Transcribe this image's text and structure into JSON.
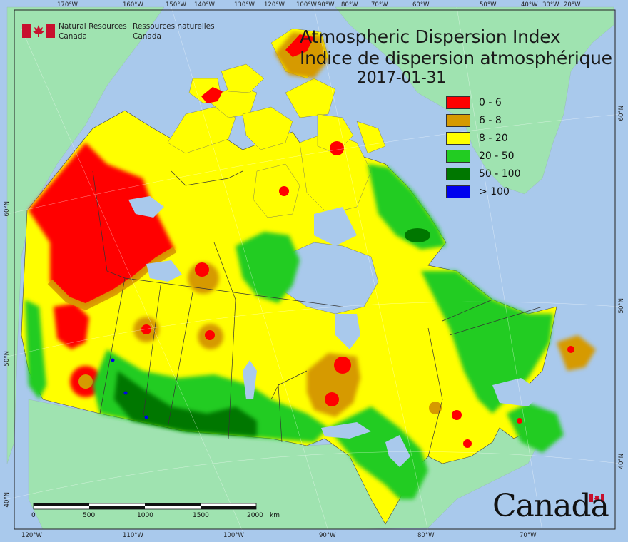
{
  "title": {
    "line_en": "Atmospheric Dispersion Index",
    "line_fr": "Indice de dispersion atmosphérique",
    "date": "2017-01-31"
  },
  "agency": {
    "en_line1": "Natural Resources",
    "en_line2": "Canada",
    "fr_line1": "Ressources naturelles",
    "fr_line2": "Canada"
  },
  "wordmark": "Canada",
  "legend": [
    {
      "label": "0 - 6",
      "color": "#ff0000"
    },
    {
      "label": "6 - 8",
      "color": "#d69a00"
    },
    {
      "label": "8 - 20",
      "color": "#ffff00"
    },
    {
      "label": "20 - 50",
      "color": "#22cc22"
    },
    {
      "label": "50 - 100",
      "color": "#007700"
    },
    {
      "label": "> 100",
      "color": "#0000ee"
    }
  ],
  "colors": {
    "ocean": "#a9c9ec",
    "foreign_land": "#9fe3b0",
    "lakes": "#a9c9ec",
    "boundaries": "#333333"
  },
  "top_ticks": [
    "170°W",
    "160°W",
    "150°W",
    "140°W",
    "130°W",
    "120°W",
    "100°W",
    "90°W",
    "80°W",
    "70°W",
    "60°W",
    "50°W",
    "40°W",
    "30°W",
    "20°W"
  ],
  "bottom_ticks": [
    "120°W",
    "110°W",
    "100°W",
    "90°W",
    "80°W",
    "70°W"
  ],
  "left_ticks": [
    "60°N",
    "50°N",
    "40°N"
  ],
  "right_ticks": [
    "60°N",
    "50°N",
    "40°N"
  ],
  "scale_bar": {
    "labels": [
      "0",
      "500",
      "1000",
      "1500",
      "2000"
    ],
    "unit": "km"
  }
}
